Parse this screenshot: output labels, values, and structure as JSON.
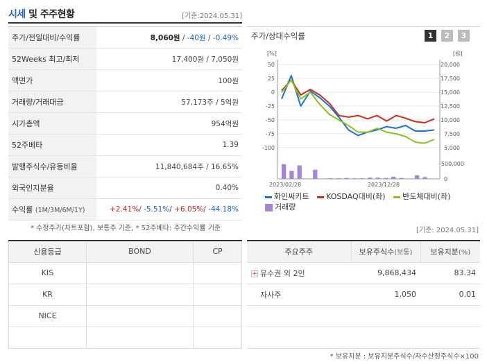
{
  "header": {
    "title_blue": "시세",
    "title_rest": " 및 주주현황",
    "base_date": "[기준:2024.05.31]"
  },
  "info": {
    "rows": [
      {
        "label": "주가/전일대비/수익률",
        "price": "8,060원",
        "sep1": " / ",
        "change": "-40원",
        "sep2": " / ",
        "rate": "-0.49%"
      },
      {
        "label": "52Weeks 최고/최저",
        "value": "17,400원 / 7,050원"
      },
      {
        "label": "액면가",
        "value": "100원"
      },
      {
        "label": "거래량/거래대금",
        "value": "57,173주 / 5억원"
      },
      {
        "label": "시가총액",
        "value": "954억원"
      },
      {
        "label": "52주베타",
        "value": "1.39"
      },
      {
        "label": "발행주식수/유동비율",
        "value": "11,840,684주 / 16.65%"
      },
      {
        "label": "외국인지분율",
        "value": "0.40%"
      },
      {
        "label": "수익률",
        "label_sub": "(1M/3M/6M/1Y)",
        "r1": "+2.41%",
        "r2": "-5.51%",
        "r3": "+6.05%",
        "r4": "-44.18%"
      }
    ],
    "note": "* 수정주가(차트포함), 보통주 기준, * 52주베타: 주간수익률 기준"
  },
  "chart_panel": {
    "title": "주가/상대수익률",
    "pages": [
      "1",
      "2",
      "3"
    ]
  },
  "chart_data": {
    "type": "line",
    "left_axis_unit": "[%]",
    "right_axis_unit": "[원]",
    "left_ticks": [
      "50",
      "25",
      "0",
      "-25",
      "-50",
      "-75",
      "-100"
    ],
    "right_ticks": [
      "20,000",
      "17,500",
      "15,000",
      "12,500",
      "10,000",
      "7,500",
      "5,000"
    ],
    "volume_ticks": [
      "500,000",
      "0"
    ],
    "x_tick_labels": [
      "2023/02/28",
      "2023/12/28"
    ],
    "ylim_left": [
      -100,
      50
    ],
    "ylim_right": [
      5000,
      20000
    ],
    "series": [
      {
        "name": "화인써키트",
        "color": "#1a6fd8",
        "values": [
          -12,
          30,
          -25,
          2,
          -10,
          -25,
          -45,
          -68,
          -78,
          -72,
          -68,
          -62,
          -65,
          -60,
          -70,
          -70,
          -68
        ]
      },
      {
        "name": "KOSDAQ대비(좌)",
        "color": "#cc2a1a",
        "values": [
          3,
          22,
          -5,
          5,
          -5,
          -20,
          -42,
          -45,
          -42,
          -48,
          -42,
          -52,
          -42,
          -47,
          -53,
          -55,
          -48
        ]
      },
      {
        "name": "반도체대비(좌)",
        "color": "#8bc21c",
        "values": [
          0,
          22,
          -12,
          0,
          -22,
          -40,
          -50,
          -60,
          -72,
          -72,
          -65,
          -72,
          -75,
          -80,
          -90,
          -92,
          -85
        ]
      }
    ],
    "volume": {
      "name": "거래량",
      "color": "#a783d5",
      "values": [
        480000,
        260000,
        440000,
        0,
        300000,
        10000,
        20000,
        20000,
        30000,
        20000,
        20000,
        40000,
        40000,
        30000,
        70000,
        30000,
        10000,
        120000,
        60000,
        10000
      ]
    }
  },
  "credit": {
    "headers": [
      "신용등급",
      "BOND",
      "CP"
    ],
    "rows": [
      [
        "KIS",
        "",
        ""
      ],
      [
        "KR",
        "",
        ""
      ],
      [
        "NICE",
        "",
        ""
      ],
      [
        "",
        "",
        ""
      ]
    ]
  },
  "holders": {
    "base_date": "[기준: 2024.05.31]",
    "headers": [
      "주요주주",
      "보유주식수",
      "(보통)",
      "보유지분",
      "(%)"
    ],
    "rows": [
      {
        "name": "유수권 외 2인",
        "shares": "9,868,434",
        "pct": "83.34",
        "expand": "+"
      },
      {
        "name": "자사주",
        "shares": "1,050",
        "pct": "0.01"
      },
      {
        "name": "",
        "shares": "",
        "pct": ""
      },
      {
        "name": "",
        "shares": "",
        "pct": ""
      }
    ],
    "note": "* 보유지분 : 보유지분주식수/자수산정주식수×100"
  }
}
